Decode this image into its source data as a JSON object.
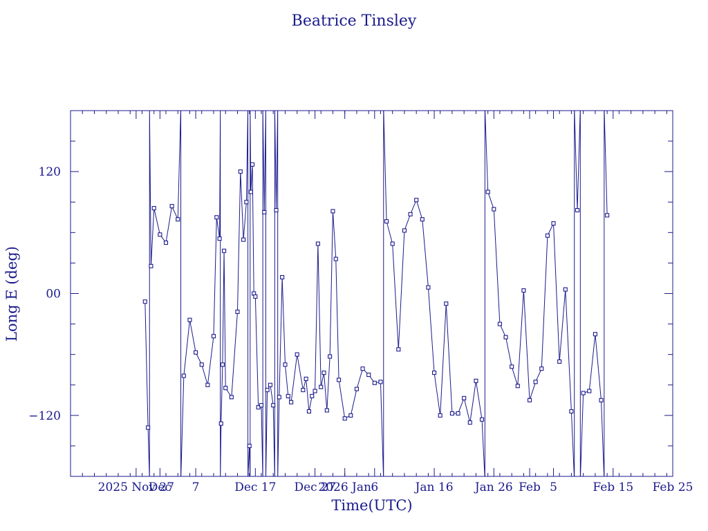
{
  "chart_data": {
    "type": "line",
    "title": "Beatrice Tinsley",
    "xlabel": "Time(UTC)",
    "ylabel": "Long E (deg)",
    "x_is_date": true,
    "xlim": [
      "2025-11-16",
      "2026-02-25"
    ],
    "ylim": [
      -180,
      180
    ],
    "x_ticks": [
      {
        "date": "2025-11-27",
        "label": "2025 Nov 27"
      },
      {
        "date": "2025-12-01",
        "label": "Dec"
      },
      {
        "date": "2025-12-07",
        "label": "7"
      },
      {
        "date": "2025-12-17",
        "label": "Dec 17"
      },
      {
        "date": "2025-12-27",
        "label": "Dec 27"
      },
      {
        "date": "2026-01-01",
        "label": "2026 Jan"
      },
      {
        "date": "2026-01-06",
        "label": "6"
      },
      {
        "date": "2026-01-16",
        "label": "Jan 16"
      },
      {
        "date": "2026-01-26",
        "label": "Jan 26"
      },
      {
        "date": "2026-02-01",
        "label": "Feb"
      },
      {
        "date": "2026-02-05",
        "label": "5"
      },
      {
        "date": "2026-02-15",
        "label": "Feb 15"
      },
      {
        "date": "2026-02-25",
        "label": "Feb 25"
      }
    ],
    "y_ticks": [
      {
        "value": -120,
        "label": "−120"
      },
      {
        "value": 0,
        "label": "00"
      },
      {
        "value": 120,
        "label": "120"
      }
    ],
    "grid": false,
    "colors": {
      "line": "#1a1a8c",
      "marker": "#1a1a8c",
      "frame": "#1a1a8c",
      "text": "#1a1a8c",
      "background": "#ffffff"
    },
    "series": [
      {
        "x": [
          "2025-11-28T12:00",
          "2025-11-29T00:00",
          "2025-11-29T12:00",
          "2025-11-30T00:00",
          "2025-12-01T00:00",
          "2025-12-02T00:00",
          "2025-12-03T00:00",
          "2025-12-04T00:00",
          "2025-12-05T00:00",
          "2025-12-06T00:00",
          "2025-12-07T00:00",
          "2025-12-08T00:00",
          "2025-12-09T00:00",
          "2025-12-10T00:00",
          "2025-12-10T12:00",
          "2025-12-11T00:00",
          "2025-12-11T06:00",
          "2025-12-11T12:00",
          "2025-12-11T18:00",
          "2025-12-12T00:00",
          "2025-12-13T00:00",
          "2025-12-14T00:00",
          "2025-12-14T12:00",
          "2025-12-15T00:00",
          "2025-12-15T12:00",
          "2025-12-16T00:00",
          "2025-12-16T06:00",
          "2025-12-16T12:00",
          "2025-12-16T18:00",
          "2025-12-17T00:00",
          "2025-12-17T12:00",
          "2025-12-18T00:00",
          "2025-12-18T12:00",
          "2025-12-19T00:00",
          "2025-12-19T12:00",
          "2025-12-20T00:00",
          "2025-12-20T12:00",
          "2025-12-21T00:00",
          "2025-12-21T12:00",
          "2025-12-22T00:00",
          "2025-12-22T12:00",
          "2025-12-23T00:00",
          "2025-12-24T00:00",
          "2025-12-25T00:00",
          "2025-12-25T12:00",
          "2025-12-26T00:00",
          "2025-12-26T12:00",
          "2025-12-27T00:00",
          "2025-12-27T12:00",
          "2025-12-28T00:00",
          "2025-12-28T12:00",
          "2025-12-29T00:00",
          "2025-12-29T12:00",
          "2025-12-30T00:00",
          "2025-12-30T12:00",
          "2025-12-31T00:00",
          "2026-01-01T00:00",
          "2026-01-02T00:00",
          "2026-01-03T00:00",
          "2026-01-04T00:00",
          "2026-01-05T00:00",
          "2026-01-06T00:00",
          "2026-01-07T00:00",
          "2026-01-08T00:00",
          "2026-01-09T00:00",
          "2026-01-10T00:00",
          "2026-01-11T00:00",
          "2026-01-12T00:00",
          "2026-01-13T00:00",
          "2026-01-14T00:00",
          "2026-01-15T00:00",
          "2026-01-16T00:00",
          "2026-01-17T00:00",
          "2026-01-18T00:00",
          "2026-01-19T00:00",
          "2026-01-20T00:00",
          "2026-01-21T00:00",
          "2026-01-22T00:00",
          "2026-01-23T00:00",
          "2026-01-24T00:00",
          "2026-01-25T00:00",
          "2026-01-26T00:00",
          "2026-01-27T00:00",
          "2026-01-28T00:00",
          "2026-01-29T00:00",
          "2026-01-30T00:00",
          "2026-01-31T00:00",
          "2026-02-01T00:00",
          "2026-02-02T00:00",
          "2026-02-03T00:00",
          "2026-02-04T00:00",
          "2026-02-05T00:00",
          "2026-02-06T00:00",
          "2026-02-07T00:00",
          "2026-02-08T00:00",
          "2026-02-09T00:00",
          "2026-02-10T00:00",
          "2026-02-11T00:00",
          "2026-02-12T00:00",
          "2026-02-13T00:00",
          "2026-02-14T00:00"
        ],
        "y": [
          -8,
          -132,
          27,
          84,
          58,
          50,
          86,
          73,
          -81,
          -26,
          -58,
          -70,
          -90,
          -42,
          75,
          54,
          -128,
          -70,
          42,
          -93,
          -102,
          -18,
          120,
          53,
          90,
          -150,
          100,
          127,
          0,
          -3,
          -112,
          -110,
          80,
          -95,
          -90,
          -110,
          82,
          -102,
          16,
          -70,
          -101,
          -107,
          -60,
          -95,
          -84,
          -116,
          -101,
          -96,
          49,
          -92,
          -78,
          -115,
          -62,
          81,
          34,
          -85,
          -123,
          -120,
          -94,
          -74,
          -80,
          -88,
          -87,
          71,
          49,
          -55,
          62,
          78,
          92,
          73,
          6,
          -78,
          -120,
          -10,
          -118,
          -118,
          -103,
          -127,
          -86,
          -124,
          100,
          83,
          -30,
          -43,
          -72,
          -91,
          3,
          -105,
          -87,
          -74,
          57,
          69,
          -67,
          4,
          -116,
          82,
          -98,
          -96,
          -40,
          -105,
          77
        ],
        "y_annot": "approximate wrapped longitude values read from plotted markers"
      }
    ]
  }
}
